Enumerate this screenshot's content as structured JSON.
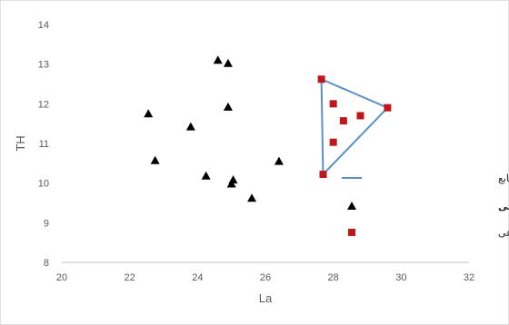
{
  "chart_data": {
    "type": "scatter",
    "xlabel": "La",
    "ylabel": "TH",
    "xlim": [
      20,
      32
    ],
    "ylim": [
      8,
      14
    ],
    "xticks": [
      "20",
      "22",
      "24",
      "26",
      "28",
      "30",
      "32"
    ],
    "yticks": [
      "8",
      "9",
      "10",
      "11",
      "12",
      "13",
      "14"
    ],
    "grid": false,
    "legend_position": "right",
    "series": [
      {
        "name": "میانگین ردیاب‌ها در منابع",
        "marker": "line",
        "color": "#5b8fc9",
        "closed": true,
        "points": [
          [
            27.65,
            12.62
          ],
          [
            29.6,
            11.9
          ],
          [
            27.7,
            10.22
          ]
        ]
      },
      {
        "name": "نمونه‌های رسوب مشاهده‌یی",
        "marker": "triangle",
        "color": "#000000",
        "points": [
          [
            24.6,
            13.1
          ],
          [
            24.9,
            13.02
          ],
          [
            22.55,
            11.75
          ],
          [
            24.9,
            11.92
          ],
          [
            23.8,
            11.42
          ],
          [
            22.75,
            10.57
          ],
          [
            24.25,
            10.18
          ],
          [
            25.05,
            10.08
          ],
          [
            25.0,
            9.98
          ],
          [
            26.4,
            10.55
          ],
          [
            25.6,
            9.62
          ]
        ]
      },
      {
        "name": "نمونه‌های رسوب مصنوعی",
        "marker": "square",
        "color": "#c0161c",
        "points": [
          [
            27.65,
            12.62
          ],
          [
            28.0,
            12.0
          ],
          [
            29.6,
            11.9
          ],
          [
            28.8,
            11.7
          ],
          [
            28.3,
            11.57
          ],
          [
            28.0,
            11.03
          ],
          [
            27.7,
            10.22
          ]
        ]
      }
    ]
  }
}
